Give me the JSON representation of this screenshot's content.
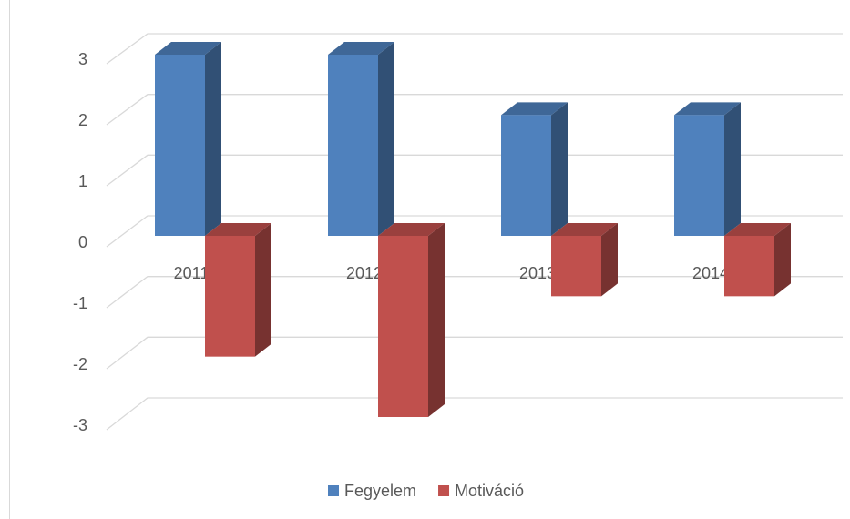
{
  "chart_data": {
    "type": "bar3d",
    "categories": [
      "2011",
      "2012",
      "2013",
      "2014"
    ],
    "series": [
      {
        "name": "Fegyelem",
        "color": "#4f81bd",
        "values": [
          3,
          3,
          2,
          2
        ]
      },
      {
        "name": "Motiváció",
        "color": "#c0504d",
        "values": [
          -2,
          -3,
          -1,
          -1
        ]
      }
    ],
    "ylim": [
      -3,
      3
    ],
    "yticks": [
      -3,
      -2,
      -1,
      0,
      1,
      2,
      3
    ],
    "grid": true,
    "legend": "bottom"
  }
}
